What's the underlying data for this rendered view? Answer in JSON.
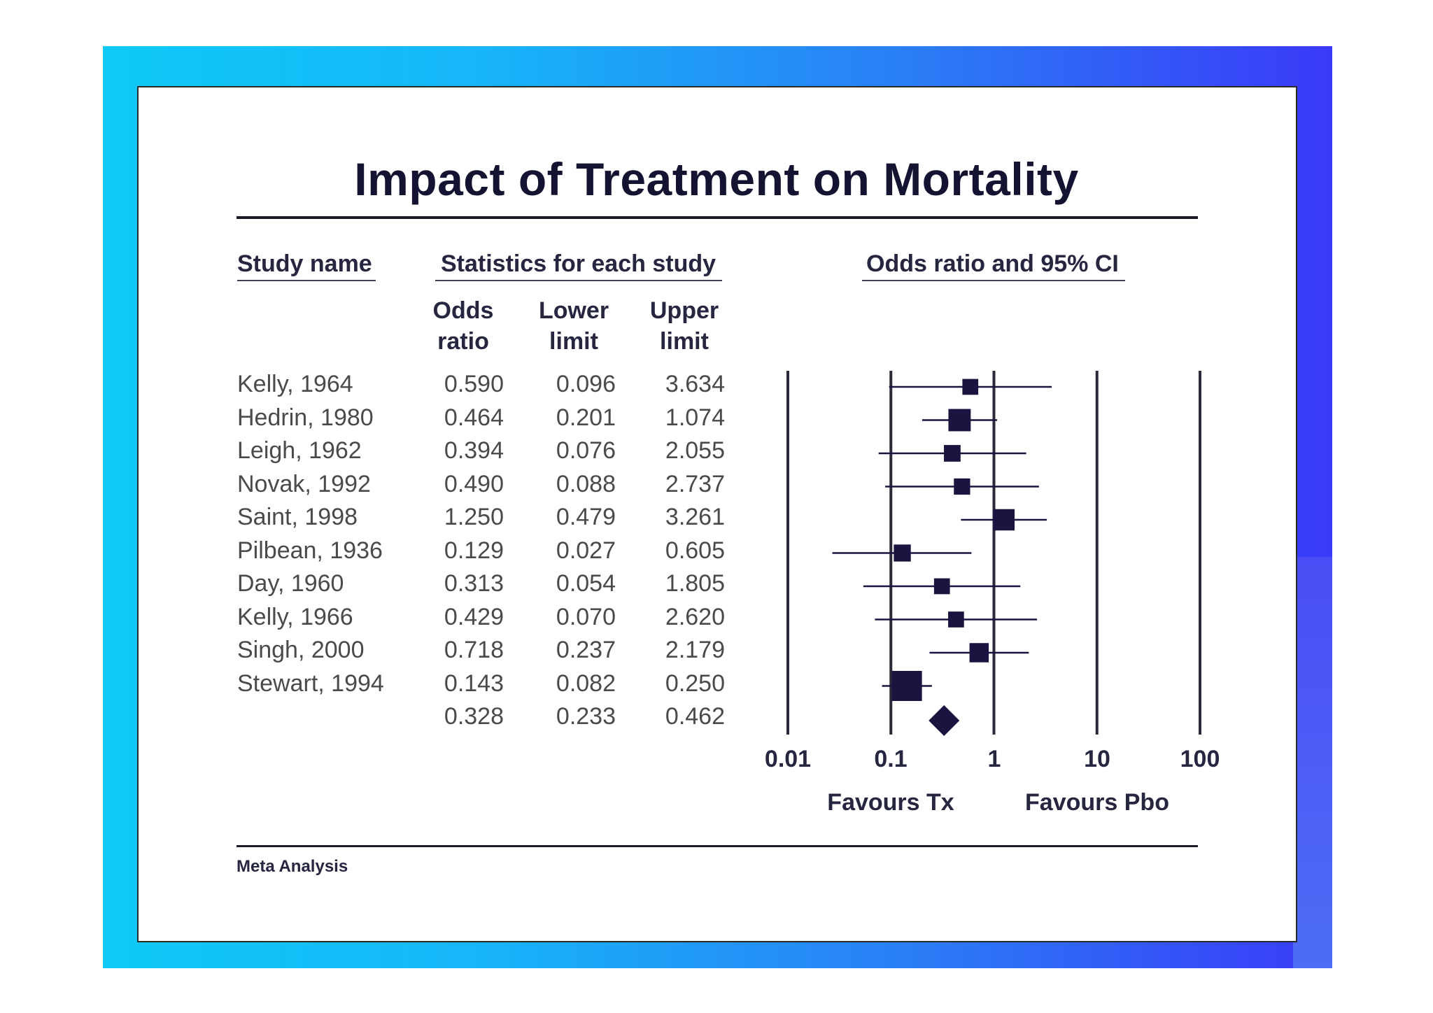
{
  "title": "Impact of Treatment on Mortality",
  "headers": {
    "study_name": "Study name",
    "statistics": "Statistics for each study",
    "plot": "Odds ratio and 95% CI",
    "odds_ratio": [
      "Odds",
      "ratio"
    ],
    "lower_limit": [
      "Lower",
      "limit"
    ],
    "upper_limit": [
      "Upper",
      "limit"
    ]
  },
  "footer": "Meta Analysis",
  "favours_left": "Favours Tx",
  "favours_right": "Favours Pbo",
  "colors": {
    "marker": "#1b1440",
    "line": "#1b1440",
    "text": "#262640",
    "bg_accent": "#2a7ff6"
  },
  "chart_data": {
    "type": "forest",
    "title": "Impact of Treatment on Mortality",
    "xscale": "log",
    "xlim": [
      0.01,
      100
    ],
    "xticks": [
      0.01,
      0.1,
      1,
      10,
      100
    ],
    "xtick_labels": [
      "0.01",
      "0.1",
      "1",
      "10",
      "100"
    ],
    "studies": [
      {
        "name": "Kelly, 1964",
        "or": "0.590",
        "lower": "0.096",
        "upper": "3.634",
        "weight": 1.0
      },
      {
        "name": "Hedrin, 1980",
        "or": "0.464",
        "lower": "0.201",
        "upper": "1.074",
        "weight": 3.2
      },
      {
        "name": "Leigh, 1962",
        "or": "0.394",
        "lower": "0.076",
        "upper": "2.055",
        "weight": 1.2
      },
      {
        "name": "Novak, 1992",
        "or": "0.490",
        "lower": "0.088",
        "upper": "2.737",
        "weight": 1.1
      },
      {
        "name": "Saint, 1998",
        "or": "1.250",
        "lower": "0.479",
        "upper": "3.261",
        "weight": 2.8
      },
      {
        "name": "Pilbean, 1936",
        "or": "0.129",
        "lower": "0.027",
        "upper": "0.605",
        "weight": 1.3
      },
      {
        "name": "Day, 1960",
        "or": "0.313",
        "lower": "0.054",
        "upper": "1.805",
        "weight": 1.0
      },
      {
        "name": "Kelly, 1966",
        "or": "0.429",
        "lower": "0.070",
        "upper": "2.620",
        "weight": 1.0
      },
      {
        "name": "Singh, 2000",
        "or": "0.718",
        "lower": "0.237",
        "upper": "2.179",
        "weight": 2.0
      },
      {
        "name": "Stewart, 1994",
        "or": "0.143",
        "lower": "0.082",
        "upper": "0.250",
        "weight": 7.5
      }
    ],
    "summary": {
      "or": "0.328",
      "lower": "0.233",
      "upper": "0.462"
    }
  }
}
